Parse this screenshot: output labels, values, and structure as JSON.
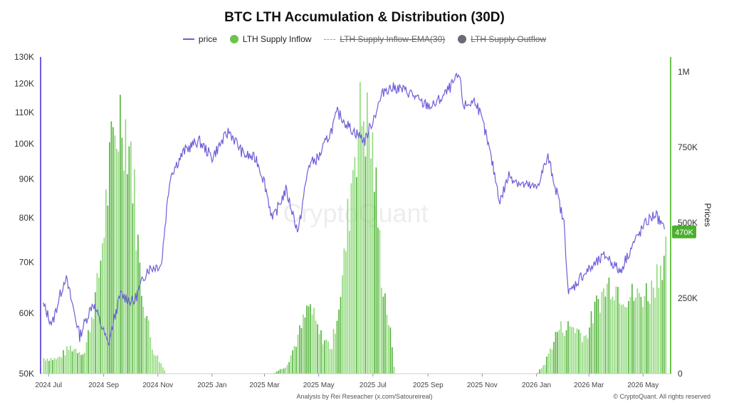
{
  "title": "BTC LTH Accumulation & Distribution (30D)",
  "legend": [
    {
      "label": "price",
      "color": "#6e5fd8",
      "kind": "line",
      "enabled": true
    },
    {
      "label": "LTH Supply Inflow",
      "color": "#6cc24a",
      "kind": "dot",
      "enabled": true
    },
    {
      "label": "LTH Supply Inflow-EMA(30)",
      "color": "#999999",
      "kind": "dash",
      "enabled": false
    },
    {
      "label": "LTH Supply Outflow",
      "color": "#6b6b78",
      "kind": "dot",
      "enabled": false
    }
  ],
  "watermark": "CryptoQuant",
  "footer_left": "Analysis by Rei Reseacher (x.com/Satoureireal)",
  "footer_right": "© CryptoQuant. All rights reserved",
  "right_axis_title": "Prices",
  "current_value_badge": "470K",
  "chart_data": {
    "type": "line",
    "x_axis": {
      "ticks": [
        "2024 Jul",
        "2024 Sep",
        "2024 Nov",
        "2025 Jan",
        "2025 Mar",
        "2025 May",
        "2025 Jul",
        "2025 Sep",
        "2025 Nov",
        "2026 Jan",
        "2026 Mar",
        "2026 May"
      ]
    },
    "left_axis": {
      "scale": "log",
      "range": [
        50000,
        130000
      ],
      "ticks": [
        {
          "value": 50000,
          "label": "50K"
        },
        {
          "value": 60000,
          "label": "60K"
        },
        {
          "value": 70000,
          "label": "70K"
        },
        {
          "value": 80000,
          "label": "80K"
        },
        {
          "value": 90000,
          "label": "90K"
        },
        {
          "value": 100000,
          "label": "100K"
        },
        {
          "value": 110000,
          "label": "110K"
        },
        {
          "value": 120000,
          "label": "120K"
        },
        {
          "value": 130000,
          "label": "130K"
        }
      ]
    },
    "right_axis": {
      "label": "Prices",
      "range": [
        0,
        1050000
      ],
      "ticks": [
        {
          "value": 0,
          "label": "0"
        },
        {
          "value": 250000,
          "label": "250K"
        },
        {
          "value": 500000,
          "label": "500K"
        },
        {
          "value": 750000,
          "label": "750K"
        },
        {
          "value": 1000000,
          "label": "1M"
        }
      ]
    },
    "series": [
      {
        "name": "price",
        "axis": "left",
        "color": "#6e5fd8",
        "x": [
          "2024-06-25",
          "2024-07-05",
          "2024-07-20",
          "2024-08-05",
          "2024-08-20",
          "2024-09-06",
          "2024-09-20",
          "2024-10-05",
          "2024-10-20",
          "2024-11-05",
          "2024-11-15",
          "2024-12-01",
          "2024-12-17",
          "2025-01-01",
          "2025-01-20",
          "2025-02-05",
          "2025-02-20",
          "2025-03-01",
          "2025-03-10",
          "2025-03-25",
          "2025-04-08",
          "2025-04-20",
          "2025-05-01",
          "2025-05-15",
          "2025-05-22",
          "2025-06-05",
          "2025-06-22",
          "2025-07-01",
          "2025-07-14",
          "2025-07-28",
          "2025-08-13",
          "2025-08-25",
          "2025-09-06",
          "2025-09-20",
          "2025-10-06",
          "2025-10-11",
          "2025-10-25",
          "2025-11-04",
          "2025-11-21",
          "2025-12-01",
          "2025-12-15",
          "2026-01-01",
          "2026-01-14",
          "2026-02-01",
          "2026-02-06",
          "2026-02-20",
          "2026-03-05",
          "2026-03-20",
          "2026-04-05",
          "2026-04-20",
          "2026-05-05",
          "2026-05-15",
          "2026-05-25"
        ],
        "values": [
          61500,
          58000,
          67000,
          56000,
          62000,
          54500,
          63500,
          62000,
          68500,
          69500,
          91000,
          98000,
          101000,
          96000,
          104000,
          97000,
          95500,
          89000,
          79500,
          87000,
          76500,
          94000,
          96000,
          104000,
          110000,
          105000,
          101000,
          107500,
          118000,
          118500,
          116500,
          113000,
          112000,
          116000,
          123000,
          112000,
          114000,
          104000,
          84000,
          91000,
          88500,
          87500,
          96000,
          78500,
          63500,
          67000,
          69000,
          71500,
          68000,
          74000,
          79000,
          81000,
          77000
        ]
      },
      {
        "name": "LTH Supply Inflow",
        "axis": "right",
        "color": "#6cc24a",
        "x": [
          "2024-06-25",
          "2024-07-10",
          "2024-07-25",
          "2024-08-10",
          "2024-08-25",
          "2024-09-08",
          "2024-09-20",
          "2024-10-01",
          "2024-10-12",
          "2024-10-25",
          "2024-11-10",
          "2025-01-01",
          "2025-03-10",
          "2025-03-25",
          "2025-04-05",
          "2025-04-20",
          "2025-05-01",
          "2025-05-15",
          "2025-05-28",
          "2025-06-10",
          "2025-06-20",
          "2025-07-01",
          "2025-07-10",
          "2025-07-20",
          "2025-07-25",
          "2025-08-10",
          "2026-01-01",
          "2026-01-10",
          "2026-01-25",
          "2026-02-10",
          "2026-02-25",
          "2026-03-10",
          "2026-03-25",
          "2026-04-10",
          "2026-04-25",
          "2026-05-10",
          "2026-05-25"
        ],
        "values": [
          60000,
          55000,
          100000,
          80000,
          340000,
          800000,
          1000000,
          850000,
          350000,
          100000,
          0,
          0,
          0,
          30000,
          120000,
          260000,
          150000,
          100000,
          380000,
          880000,
          1000000,
          820000,
          390000,
          150000,
          0,
          0,
          0,
          40000,
          170000,
          180000,
          140000,
          270000,
          350000,
          300000,
          290000,
          320000,
          470000
        ]
      }
    ]
  }
}
